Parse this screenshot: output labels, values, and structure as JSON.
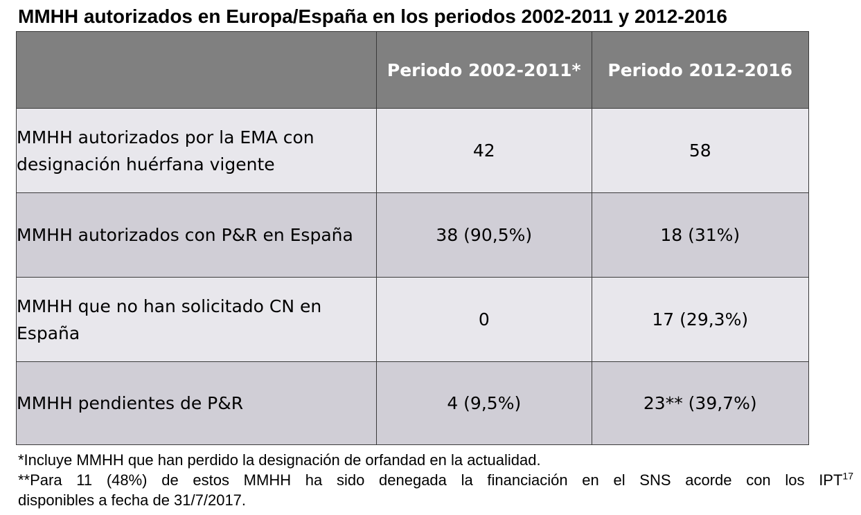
{
  "title": "MMHH autorizados en Europa/España en los periodos 2002-2011 y 2012-2016",
  "table": {
    "headers": [
      "",
      "Periodo 2002-2011*",
      "Periodo 2012-2016"
    ],
    "rows": [
      {
        "label": "MMHH autorizados por la EMA con designación huérfana vigente",
        "p1": "42",
        "p2": "58"
      },
      {
        "label": "MMHH autorizados con P&R en España",
        "p1": "38 (90,5%)",
        "p2": "18 (31%)"
      },
      {
        "label": "MMHH que no han solicitado CN en España",
        "p1": "0",
        "p2": "17 (29,3%)"
      },
      {
        "label": "MMHH pendientes de P&R",
        "p1": "4 (9,5%)",
        "p2": "23** (39,7%)"
      }
    ]
  },
  "notes": {
    "note1": "*Incluye MMHH que han perdido la designación de orfandad en la actualidad.",
    "note2_main": "**Para 11 (48%) de estos MMHH ha sido denegada la financiación en el SNS acorde con los IPT",
    "note2_sup": "17",
    "note2_cont": "disponibles a fecha de 31/7/2017."
  },
  "colors": {
    "header_bg": "#808080",
    "row_light": "#e8e7ec",
    "row_dark": "#d0ced6",
    "border": "#3a3a3a"
  }
}
